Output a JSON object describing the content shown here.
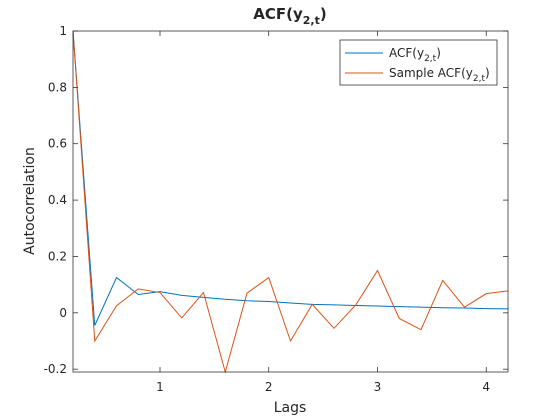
{
  "chart_data": {
    "type": "line",
    "title_main": "ACF(y",
    "title_sub": "2,t",
    "title_end": ")",
    "xlabel": "Lags",
    "ylabel": "Autocorrelation",
    "xlim": [
      0.2,
      4.2
    ],
    "ylim": [
      -0.21,
      1.0
    ],
    "x_ticks": [
      1,
      2,
      3,
      4
    ],
    "x_tick_labels": [
      "1",
      "2",
      "3",
      "4"
    ],
    "y_ticks": [
      -0.2,
      0,
      0.2,
      0.4,
      0.6,
      0.8,
      1
    ],
    "y_tick_labels": [
      "-0.2",
      "0",
      "0.2",
      "0.4",
      "0.6",
      "0.8",
      "1"
    ],
    "legend_position": "top-right",
    "x": [
      0.2,
      0.4,
      0.6,
      0.8,
      1.0,
      1.2,
      1.4,
      1.6,
      1.8,
      2.0,
      2.2,
      2.4,
      2.6,
      2.8,
      3.0,
      3.2,
      3.4,
      3.6,
      3.8,
      4.0,
      4.2
    ],
    "series": [
      {
        "legend_main": "ACF(y",
        "legend_sub": "2,t",
        "legend_end": ")",
        "color": "#0072BD",
        "values": [
          1.0,
          -0.045,
          0.125,
          0.065,
          0.075,
          0.062,
          0.055,
          0.048,
          0.043,
          0.04,
          0.035,
          0.03,
          0.028,
          0.026,
          0.024,
          0.022,
          0.02,
          0.018,
          0.017,
          0.015,
          0.014
        ]
      },
      {
        "legend_main": "Sample ACF(y",
        "legend_sub": "2,t",
        "legend_end": ")",
        "color": "#D95319",
        "values": [
          1.0,
          -0.1,
          0.025,
          0.085,
          0.072,
          -0.018,
          0.072,
          -0.21,
          0.07,
          0.125,
          -0.1,
          0.03,
          -0.055,
          0.028,
          0.15,
          -0.02,
          -0.06,
          0.115,
          0.02,
          0.068,
          0.078
        ]
      }
    ]
  }
}
